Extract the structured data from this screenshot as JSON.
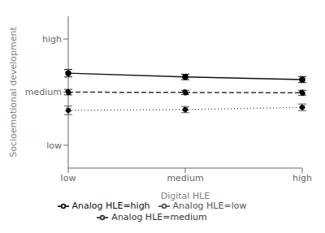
{
  "chart_data": {
    "type": "line",
    "x_label": "Digital HLE",
    "y_label": "Socioemotional development",
    "categories": [
      "low",
      "medium",
      "high"
    ],
    "ylim": [
      0.0,
      1.0
    ],
    "yticks": [
      {
        "value": 0.15,
        "label": "low"
      },
      {
        "value": 0.5,
        "label": "medium"
      },
      {
        "value": 0.85,
        "label": "high"
      }
    ],
    "grid": false,
    "legend": "bottom",
    "series": [
      {
        "name": "Analog HLE=low",
        "color": "#555555",
        "line_style": "dotted",
        "marker": "circle",
        "values": [
          0.38,
          0.385,
          0.4
        ],
        "errors": [
          0.028,
          0.02,
          0.022
        ]
      },
      {
        "name": "Analog HLE=medium",
        "color": "#333333",
        "line_style": "dashed",
        "marker": "circle",
        "values": [
          0.5,
          0.498,
          0.496
        ],
        "errors": [
          0.018,
          0.014,
          0.016
        ]
      },
      {
        "name": "Analog HLE=high",
        "color": "#111111",
        "line_style": "solid",
        "marker": "circle",
        "values": [
          0.625,
          0.6,
          0.583
        ],
        "errors": [
          0.025,
          0.018,
          0.02
        ]
      }
    ]
  }
}
